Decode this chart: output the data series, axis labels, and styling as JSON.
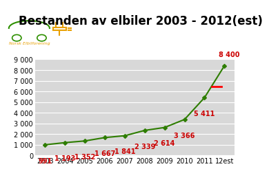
{
  "title": "Bestanden av elbiler 2003 - 2012(est)",
  "years": [
    "2003",
    "2004",
    "2005",
    "2006",
    "2007",
    "2008",
    "2009",
    "2010",
    "2011",
    "12est"
  ],
  "values": [
    991,
    1193,
    1352,
    1667,
    1841,
    2339,
    2614,
    3366,
    5411,
    8400
  ],
  "line_color": "#2e7d00",
  "marker_color": "#2e7d00",
  "label_color": "#cc0000",
  "fig_bg_color": "#ffffff",
  "plot_bg_color": "#d8d8d8",
  "ylim": [
    0,
    9000
  ],
  "yticks": [
    0,
    1000,
    2000,
    3000,
    4000,
    5000,
    6000,
    7000,
    8000,
    9000
  ],
  "title_fontsize": 12,
  "label_fontsize": 7,
  "tick_fontsize": 7,
  "grid_color": "#ffffff",
  "formatted_labels": [
    "991",
    "1 193",
    "1 352",
    "1 667",
    "1 841",
    "2 339",
    "2 614",
    "3 366",
    "5 411",
    "8 400"
  ],
  "label_offsets_x": [
    0,
    0,
    0,
    0,
    0,
    0,
    0,
    0,
    0,
    5
  ],
  "label_offsets_y": [
    -13,
    -13,
    -13,
    -13,
    -13,
    -13,
    -13,
    -13,
    -13,
    8
  ],
  "red_line_y": 6450,
  "red_line_xi": [
    8.35,
    8.85
  ],
  "elbilforing_text": "Norsk Elbilforening",
  "elbilforing_color": "#e8a000"
}
